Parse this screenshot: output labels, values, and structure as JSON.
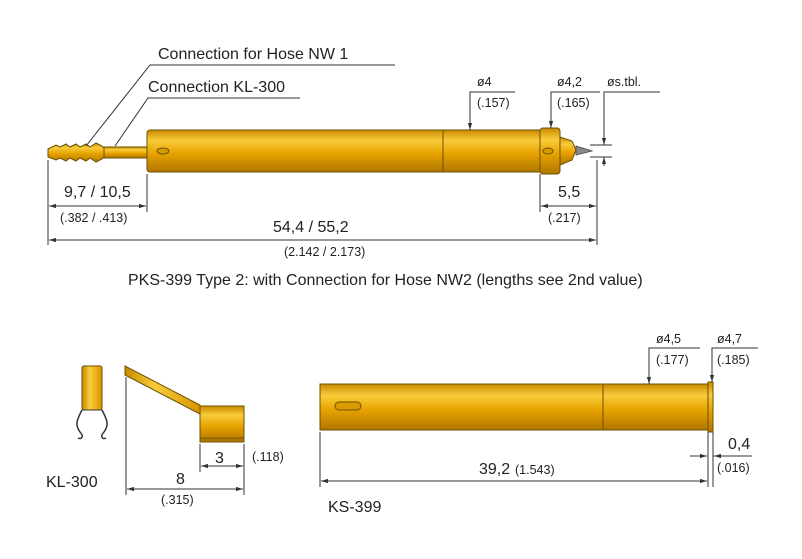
{
  "labels": {
    "hose_nw1": "Connection for Hose NW 1",
    "kl300_conn": "Connection KL-300",
    "d4": "ø4",
    "d4_in": "(.157)",
    "d42": "ø4,2",
    "d42_in": "(.165)",
    "dstbl": "øs.tbl.",
    "len_97": "9,7 / 10,5",
    "len_97_in": "(.382 / .413)",
    "len_55": "5,5",
    "len_55_in": "(.217)",
    "len_total": "54,4 / 55,2",
    "len_total_in": "(2.142 / 2.173)",
    "caption": "PKS-399 Type 2:  with Connection for Hose NW2 (lengths see 2nd value)",
    "d45": "ø4,5",
    "d45_in": "(.177)",
    "d47": "ø4,7",
    "d47_in": "(.185)",
    "len_04": "0,4",
    "len_04_in": "(.016)",
    "len_392": "39,2",
    "len_392_in": "(1.543)",
    "ks399": "KS-399",
    "kl300": "KL-300",
    "len_8": "8",
    "len_8_in": "(.315)",
    "len_3": "3",
    "len_3_in": "(.118)"
  },
  "colors": {
    "gold_light": "#f7c531",
    "gold_mid": "#e6a100",
    "gold_dark": "#b87d00"
  }
}
